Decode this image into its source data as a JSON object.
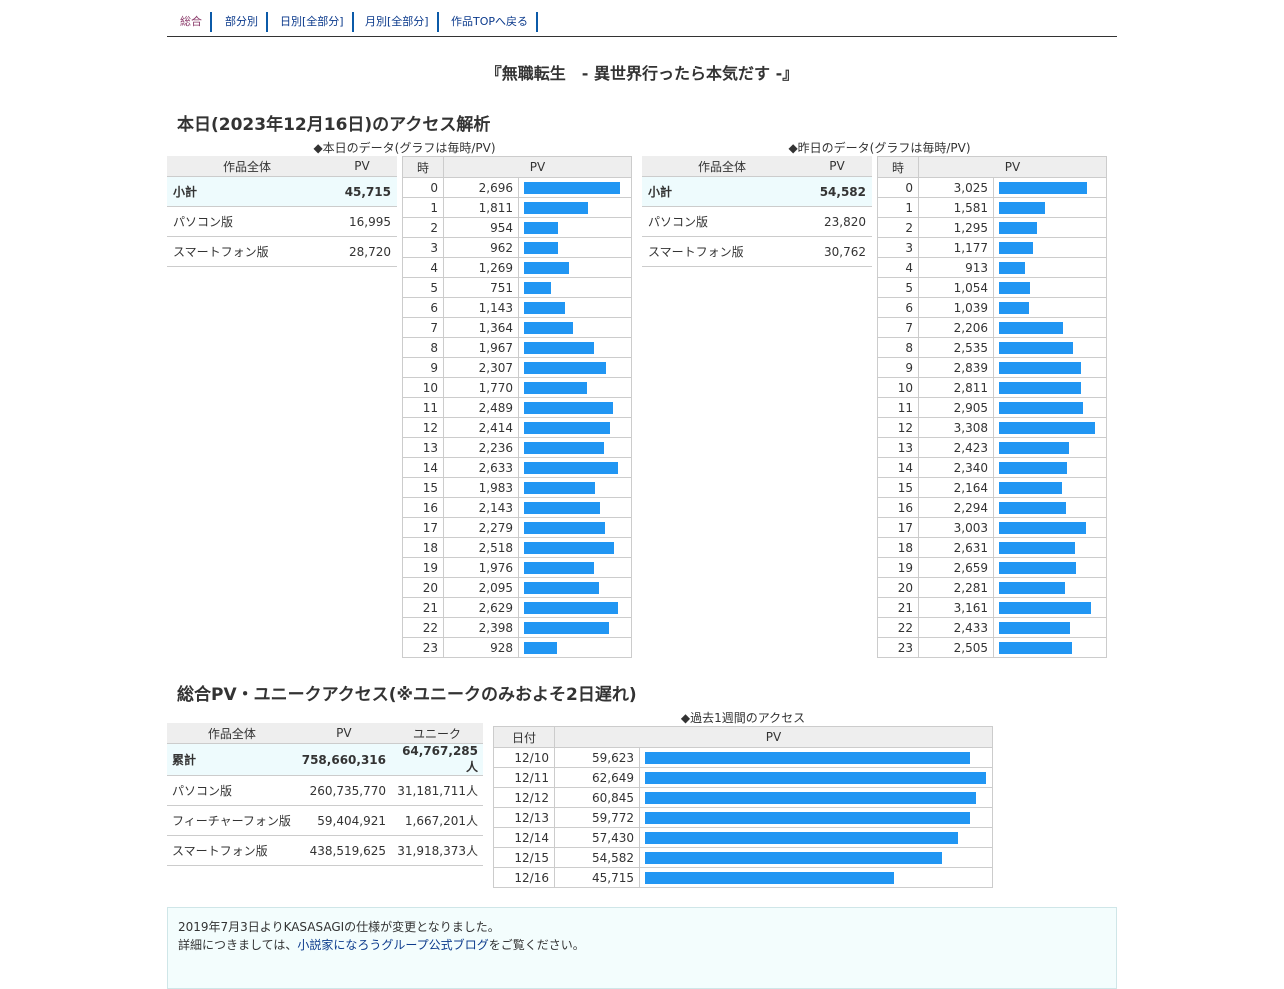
{
  "nav": [
    {
      "label": "総合",
      "active": true
    },
    {
      "label": "部分別",
      "active": false
    },
    {
      "label": "日別[全部分]",
      "active": false
    },
    {
      "label": "月別[全部分]",
      "active": false
    },
    {
      "label": "作品TOPへ戻る",
      "active": false
    }
  ],
  "work_title": "『無職転生　- 異世界行ったら本気だす -』",
  "today": {
    "heading": "本日(2023年12月16日)のアクセス解析",
    "caption": "◆本日のデータ(グラフは毎時/PV)",
    "summary_headers": [
      "作品全体",
      "PV"
    ],
    "summary_rows": [
      {
        "label": "小計",
        "value": "45,715"
      },
      {
        "label": "パソコン版",
        "value": "16,995"
      },
      {
        "label": "スマートフォン版",
        "value": "28,720"
      }
    ]
  },
  "yesterday": {
    "caption": "◆昨日のデータ(グラフは毎時/PV)",
    "summary_headers": [
      "作品全体",
      "PV"
    ],
    "summary_rows": [
      {
        "label": "小計",
        "value": "54,582"
      },
      {
        "label": "パソコン版",
        "value": "23,820"
      },
      {
        "label": "スマートフォン版",
        "value": "30,762"
      }
    ]
  },
  "hourly_headers": [
    "時",
    "PV"
  ],
  "chart_data": [
    {
      "type": "bar",
      "title": "◆本日のデータ(グラフは毎時/PV)",
      "xlabel": "時",
      "ylabel": "PV",
      "categories": [
        "0",
        "1",
        "2",
        "3",
        "4",
        "5",
        "6",
        "7",
        "8",
        "9",
        "10",
        "11",
        "12",
        "13",
        "14",
        "15",
        "16",
        "17",
        "18",
        "19",
        "20",
        "21",
        "22",
        "23"
      ],
      "values": [
        2696,
        1811,
        954,
        962,
        1269,
        751,
        1143,
        1364,
        1967,
        2307,
        1770,
        2489,
        2414,
        2236,
        2633,
        1983,
        2143,
        2279,
        2518,
        1976,
        2095,
        2629,
        2398,
        928
      ]
    },
    {
      "type": "bar",
      "title": "◆昨日のデータ(グラフは毎時/PV)",
      "xlabel": "時",
      "ylabel": "PV",
      "categories": [
        "0",
        "1",
        "2",
        "3",
        "4",
        "5",
        "6",
        "7",
        "8",
        "9",
        "10",
        "11",
        "12",
        "13",
        "14",
        "15",
        "16",
        "17",
        "18",
        "19",
        "20",
        "21",
        "22",
        "23"
      ],
      "values": [
        3025,
        1581,
        1295,
        1177,
        913,
        1054,
        1039,
        2206,
        2535,
        2839,
        2811,
        2905,
        3308,
        2423,
        2340,
        2164,
        2294,
        3003,
        2631,
        2659,
        2281,
        3161,
        2433,
        2505
      ]
    },
    {
      "type": "bar",
      "title": "◆過去1週間のアクセス",
      "xlabel": "日付",
      "ylabel": "PV",
      "categories": [
        "12/10",
        "12/11",
        "12/12",
        "12/13",
        "12/14",
        "12/15",
        "12/16"
      ],
      "values": [
        59623,
        62649,
        60845,
        59772,
        57430,
        54582,
        45715
      ]
    }
  ],
  "totals": {
    "heading": "総合PV・ユニークアクセス(※ユニークのみおよそ2日遅れ)",
    "headers": [
      "作品全体",
      "PV",
      "ユニーク"
    ],
    "rows": [
      {
        "label": "累計",
        "pv": "758,660,316",
        "unique": "64,767,285人"
      },
      {
        "label": "パソコン版",
        "pv": "260,735,770",
        "unique": "31,181,711人"
      },
      {
        "label": "フィーチャーフォン版",
        "pv": "59,404,921",
        "unique": "1,667,201人"
      },
      {
        "label": "スマートフォン版",
        "pv": "438,519,625",
        "unique": "31,918,373人"
      }
    ]
  },
  "weekly": {
    "caption": "◆過去1週間のアクセス",
    "headers": [
      "日付",
      "PV"
    ]
  },
  "notice": {
    "line1": "2019年7月3日よりKASASAGIの仕様が変更となりました。",
    "line2_prefix": "詳細につきましては、",
    "line2_link": "小説家になろうグループ公式ブログ",
    "line2_suffix": "をご覧ください。"
  },
  "colors": {
    "bar": "#2196f3",
    "subtotal_bg": "#eefbfd"
  }
}
